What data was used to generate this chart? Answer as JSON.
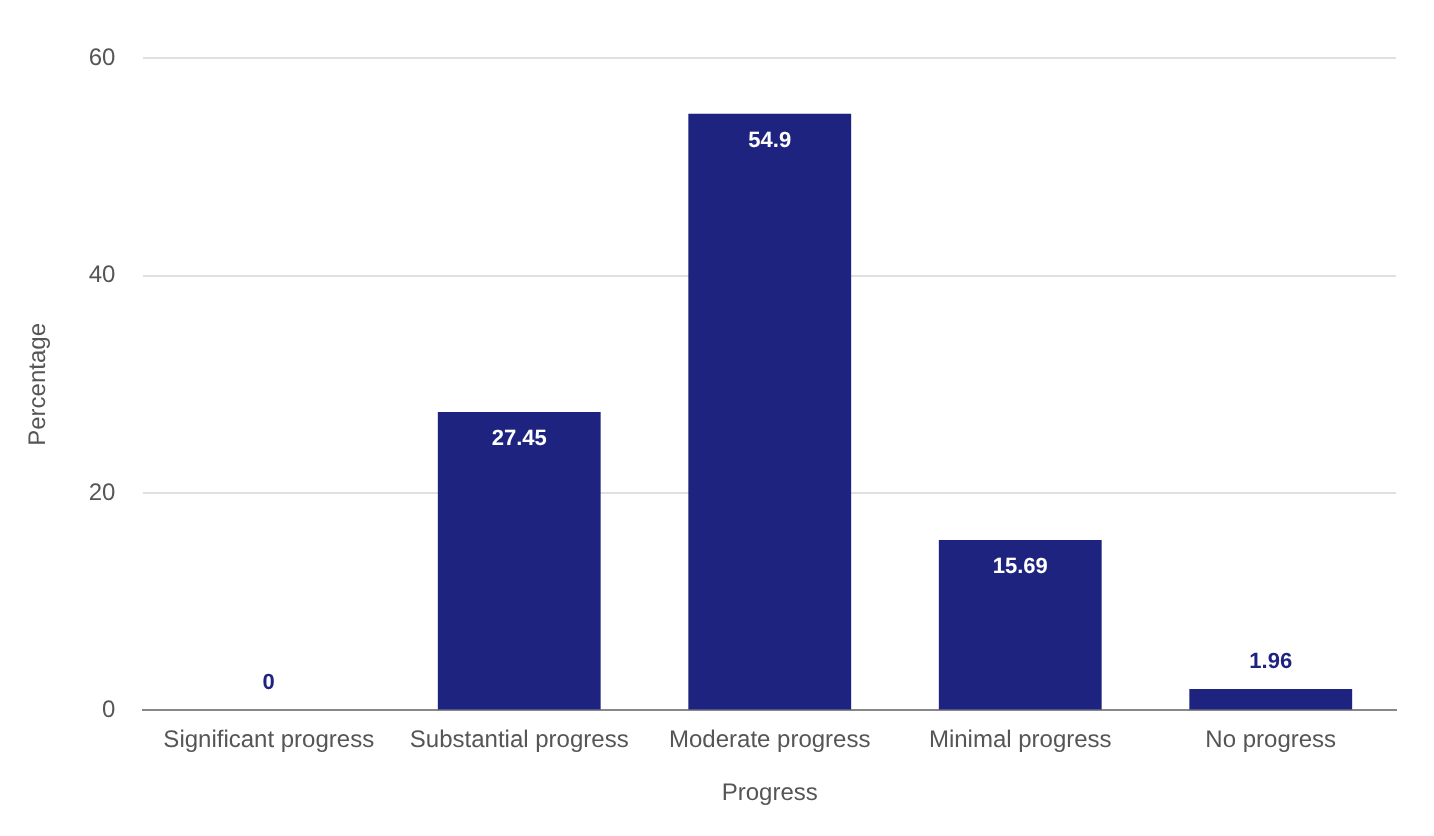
{
  "chart_data": {
    "type": "bar",
    "xlabel": "Progress",
    "ylabel": "Percentage",
    "categories": [
      "Significant progress",
      "Substantial progress",
      "Moderate progress",
      "Minimal progress",
      "No progress"
    ],
    "values": [
      0,
      27.45,
      54.9,
      15.69,
      1.96
    ],
    "color": "#1e2380",
    "ylim": [
      0,
      60
    ],
    "yticks": [
      0,
      20,
      40,
      60
    ],
    "grid": "y",
    "data_labels": true,
    "legend": false
  }
}
